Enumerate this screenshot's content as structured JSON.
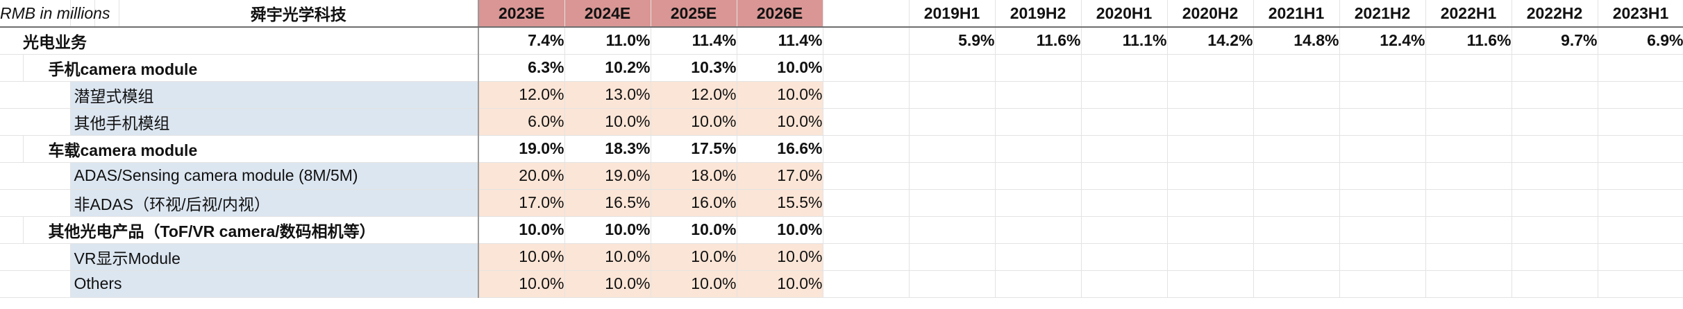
{
  "header": {
    "unit_label": "RMB in millions",
    "company": "舜宇光学科技",
    "forecast_years": [
      "2023E",
      "2024E",
      "2025E",
      "2026E"
    ],
    "half_years": [
      "2019H1",
      "2019H2",
      "2020H1",
      "2020H2",
      "2021H1",
      "2021H2",
      "2022H1",
      "2022H2",
      "2023H1"
    ]
  },
  "rows": [
    {
      "label": "光电业务",
      "level": 0,
      "bold": true,
      "forecast": [
        "7.4%",
        "11.0%",
        "11.4%",
        "11.4%"
      ],
      "history": [
        "5.9%",
        "11.6%",
        "11.1%",
        "14.2%",
        "14.8%",
        "12.4%",
        "11.6%",
        "9.7%",
        "6.9%"
      ]
    },
    {
      "label": "手机camera module",
      "level": 1,
      "bold": true,
      "forecast": [
        "6.3%",
        "10.2%",
        "10.3%",
        "10.0%"
      ],
      "history": []
    },
    {
      "label": "潜望式模组",
      "level": 2,
      "bold": false,
      "forecast": [
        "12.0%",
        "13.0%",
        "12.0%",
        "10.0%"
      ],
      "history": []
    },
    {
      "label": "其他手机模组",
      "level": 2,
      "bold": false,
      "forecast": [
        "6.0%",
        "10.0%",
        "10.0%",
        "10.0%"
      ],
      "history": []
    },
    {
      "label": "车载camera module",
      "level": 1,
      "bold": true,
      "forecast": [
        "19.0%",
        "18.3%",
        "17.5%",
        "16.6%"
      ],
      "history": []
    },
    {
      "label": "ADAS/Sensing camera module (8M/5M)",
      "level": 2,
      "bold": false,
      "forecast": [
        "20.0%",
        "19.0%",
        "18.0%",
        "17.0%"
      ],
      "history": []
    },
    {
      "label": "非ADAS（环视/后视/内视）",
      "level": 2,
      "bold": false,
      "forecast": [
        "17.0%",
        "16.5%",
        "16.0%",
        "15.5%"
      ],
      "history": []
    },
    {
      "label": "其他光电产品（ToF/VR camera/数码相机等）",
      "level": 1,
      "bold": true,
      "forecast": [
        "10.0%",
        "10.0%",
        "10.0%",
        "10.0%"
      ],
      "history": []
    },
    {
      "label": "VR显示Module",
      "level": 2,
      "bold": false,
      "forecast": [
        "10.0%",
        "10.0%",
        "10.0%",
        "10.0%"
      ],
      "history": []
    },
    {
      "label": "Others",
      "level": 2,
      "bold": false,
      "forecast": [
        "10.0%",
        "10.0%",
        "10.0%",
        "10.0%"
      ],
      "history": []
    }
  ],
  "colors": {
    "forecast_header": "#d99694",
    "forecast_cell": "#fbe5d6",
    "sub_item": "#dce6f1"
  }
}
